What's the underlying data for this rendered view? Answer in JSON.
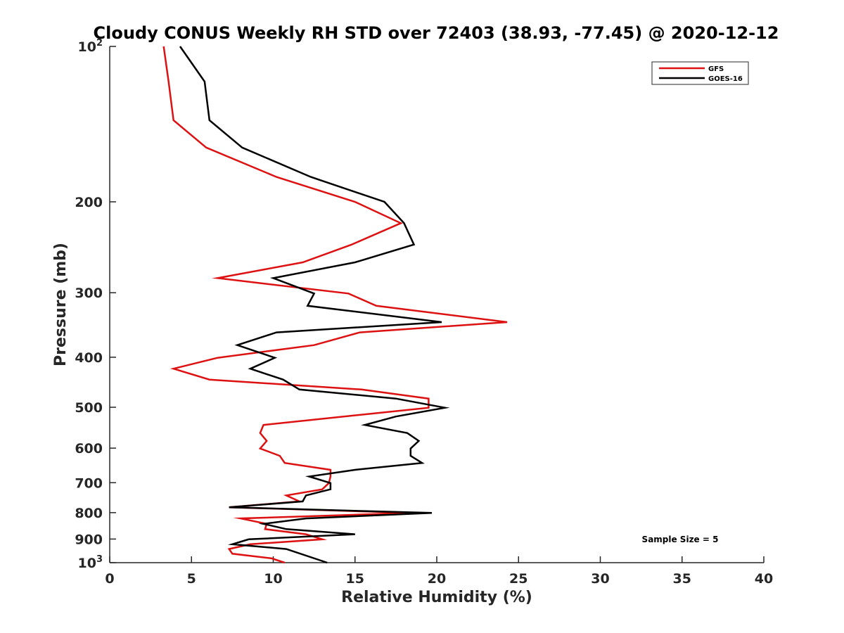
{
  "chart_data": {
    "type": "line",
    "title": "Cloudy CONUS Weekly RH STD over 72403 (38.93, -77.45) @ 2020-12-12",
    "xlabel": "Relative Humidity (%)",
    "ylabel": "Pressure (mb)",
    "xlim": [
      0,
      40
    ],
    "ylim": [
      100,
      1000
    ],
    "y_scale": "log",
    "y_reversed": true,
    "xticks": [
      "0",
      "5",
      "10",
      "15",
      "20",
      "25",
      "30",
      "35",
      "40"
    ],
    "yticks": [
      {
        "value": 100,
        "base": "10",
        "exp": "2"
      },
      {
        "value": 200,
        "label": "200"
      },
      {
        "value": 300,
        "label": "300"
      },
      {
        "value": 400,
        "label": "400"
      },
      {
        "value": 500,
        "label": "500"
      },
      {
        "value": 600,
        "label": "600"
      },
      {
        "value": 700,
        "label": "700"
      },
      {
        "value": 800,
        "label": "800"
      },
      {
        "value": 900,
        "label": "900"
      },
      {
        "value": 1000,
        "base": "10",
        "exp": "3"
      }
    ],
    "legend_position": "top-right",
    "grid": false,
    "annotation": "Sample Size = 5",
    "series": [
      {
        "name": "GFS",
        "color": "#dd1111",
        "points": [
          [
            3.3,
            100
          ],
          [
            3.6,
            117
          ],
          [
            3.9,
            139
          ],
          [
            5.9,
            157
          ],
          [
            10.2,
            179
          ],
          [
            15.0,
            200
          ],
          [
            17.8,
            220
          ],
          [
            14.8,
            242
          ],
          [
            11.8,
            262
          ],
          [
            6.6,
            281
          ],
          [
            14.6,
            301
          ],
          [
            16.3,
            318
          ],
          [
            24.3,
            342
          ],
          [
            15.3,
            358
          ],
          [
            12.5,
            379
          ],
          [
            6.6,
            401
          ],
          [
            3.9,
            421
          ],
          [
            6.1,
            442
          ],
          [
            15.4,
            462
          ],
          [
            19.5,
            481
          ],
          [
            19.5,
            501
          ],
          [
            9.4,
            541
          ],
          [
            9.2,
            561
          ],
          [
            9.6,
            581
          ],
          [
            9.2,
            601
          ],
          [
            10.4,
            621
          ],
          [
            10.7,
            641
          ],
          [
            13.5,
            661
          ],
          [
            13.5,
            681
          ],
          [
            13.4,
            701
          ],
          [
            13.0,
            721
          ],
          [
            10.8,
            741
          ],
          [
            11.6,
            761
          ],
          [
            7.3,
            781
          ],
          [
            18.5,
            801
          ],
          [
            8.0,
            821
          ],
          [
            9.6,
            841
          ],
          [
            9.5,
            861
          ],
          [
            12.0,
            881
          ],
          [
            13.0,
            901
          ],
          [
            8.6,
            921
          ],
          [
            7.3,
            941
          ],
          [
            7.5,
            961
          ],
          [
            9.9,
            981
          ],
          [
            10.7,
            1000
          ]
        ]
      },
      {
        "name": "GOES-16",
        "color": "#000000",
        "points": [
          [
            4.3,
            100
          ],
          [
            5.8,
            117
          ],
          [
            6.1,
            139
          ],
          [
            8.1,
            157
          ],
          [
            12.3,
            179
          ],
          [
            16.8,
            200
          ],
          [
            18.0,
            220
          ],
          [
            18.6,
            242
          ],
          [
            15.0,
            262
          ],
          [
            10.0,
            281
          ],
          [
            12.5,
            301
          ],
          [
            12.1,
            318
          ],
          [
            20.3,
            342
          ],
          [
            10.2,
            358
          ],
          [
            7.8,
            379
          ],
          [
            10.1,
            401
          ],
          [
            8.6,
            421
          ],
          [
            10.6,
            442
          ],
          [
            11.6,
            462
          ],
          [
            17.5,
            481
          ],
          [
            20.5,
            501
          ],
          [
            17.5,
            521
          ],
          [
            15.6,
            541
          ],
          [
            18.2,
            561
          ],
          [
            18.9,
            581
          ],
          [
            18.4,
            601
          ],
          [
            18.4,
            621
          ],
          [
            19.1,
            641
          ],
          [
            15.0,
            661
          ],
          [
            12.2,
            681
          ],
          [
            13.5,
            701
          ],
          [
            13.5,
            721
          ],
          [
            12.0,
            741
          ],
          [
            11.8,
            761
          ],
          [
            7.3,
            781
          ],
          [
            19.7,
            801
          ],
          [
            12.0,
            821
          ],
          [
            9.4,
            841
          ],
          [
            10.8,
            861
          ],
          [
            15.0,
            881
          ],
          [
            8.5,
            901
          ],
          [
            7.5,
            921
          ],
          [
            10.8,
            941
          ],
          [
            13.3,
            1000
          ]
        ]
      }
    ]
  }
}
